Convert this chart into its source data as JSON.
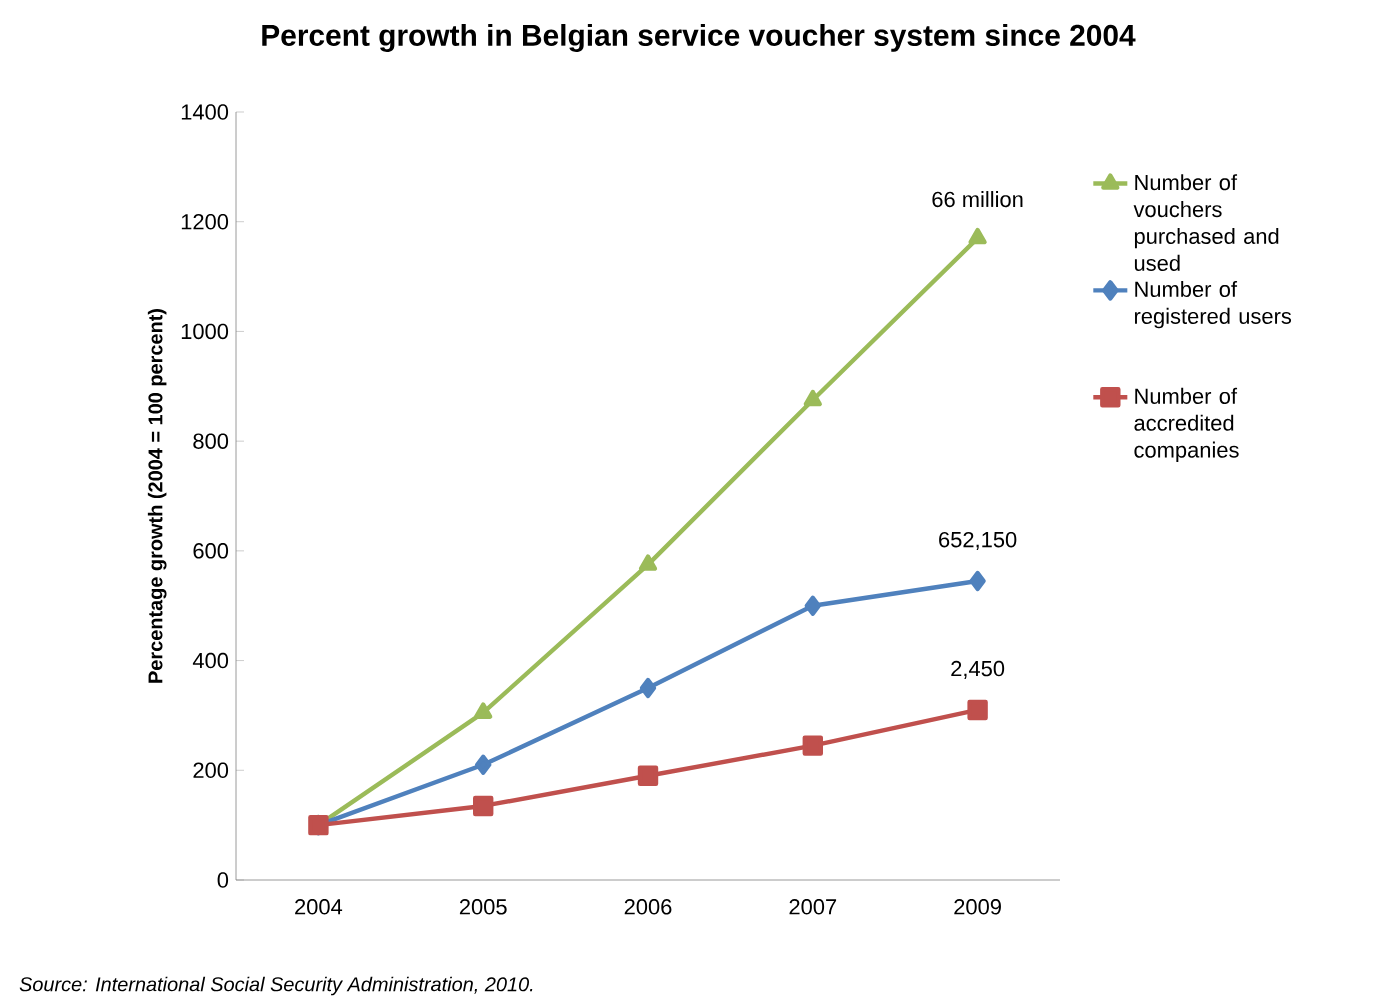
{
  "chart_data": {
    "type": "line",
    "title": "Percent growth in Belgian service voucher system since 2004",
    "ylabel": "Percentage growth (2004 = 100 percent)",
    "categories": [
      "2004",
      "2005",
      "2006",
      "2007",
      "2009"
    ],
    "series": [
      {
        "name": "Number of vouchers purchased and used",
        "color": "#9bbb59",
        "marker": "triangle",
        "values": [
          100,
          305,
          575,
          875,
          1170
        ]
      },
      {
        "name": "Number of registered users",
        "color": "#4f81bd",
        "marker": "diamond",
        "values": [
          100,
          210,
          350,
          500,
          545
        ]
      },
      {
        "name": "Number of accredited companies",
        "color": "#c0504d",
        "marker": "square",
        "values": [
          100,
          135,
          190,
          245,
          310
        ]
      }
    ],
    "ylim": [
      0,
      1400
    ],
    "yticks": [
      0,
      200,
      400,
      600,
      800,
      1000,
      1200,
      1400
    ],
    "grid": false,
    "legend": "right",
    "annotations": [
      {
        "text": "66 million",
        "x": "2009",
        "y": 1170
      },
      {
        "text": "652,150",
        "x": "2009",
        "y": 545
      },
      {
        "text": "2,450",
        "x": "2009",
        "y": 310
      },
      "Source: International Social Security Administration, 2010."
    ]
  }
}
